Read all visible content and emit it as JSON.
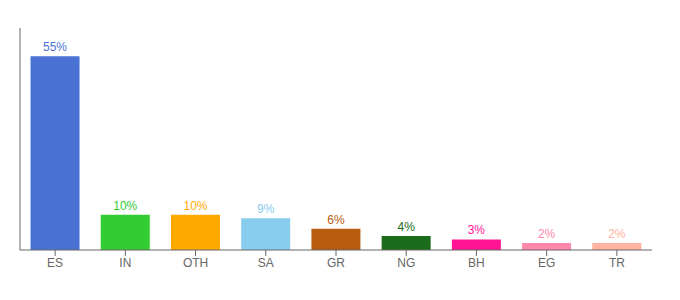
{
  "chart_data": {
    "type": "bar",
    "categories": [
      "ES",
      "IN",
      "OTH",
      "SA",
      "GR",
      "NG",
      "BH",
      "EG",
      "TR"
    ],
    "values": [
      55,
      10,
      10,
      9,
      6,
      4,
      3,
      2,
      2
    ],
    "value_labels": [
      "55%",
      "10%",
      "10%",
      "9%",
      "6%",
      "4%",
      "3%",
      "2%",
      "2%"
    ],
    "colors": [
      "#4a72d4",
      "#33cc33",
      "#ffaa00",
      "#88ccee",
      "#b85c10",
      "#1a6b1a",
      "#ff1493",
      "#ff88aa",
      "#ffb3a0"
    ],
    "ylim": [
      0,
      63
    ],
    "data_labels": true,
    "tick_labels": "x",
    "grid": false
  }
}
